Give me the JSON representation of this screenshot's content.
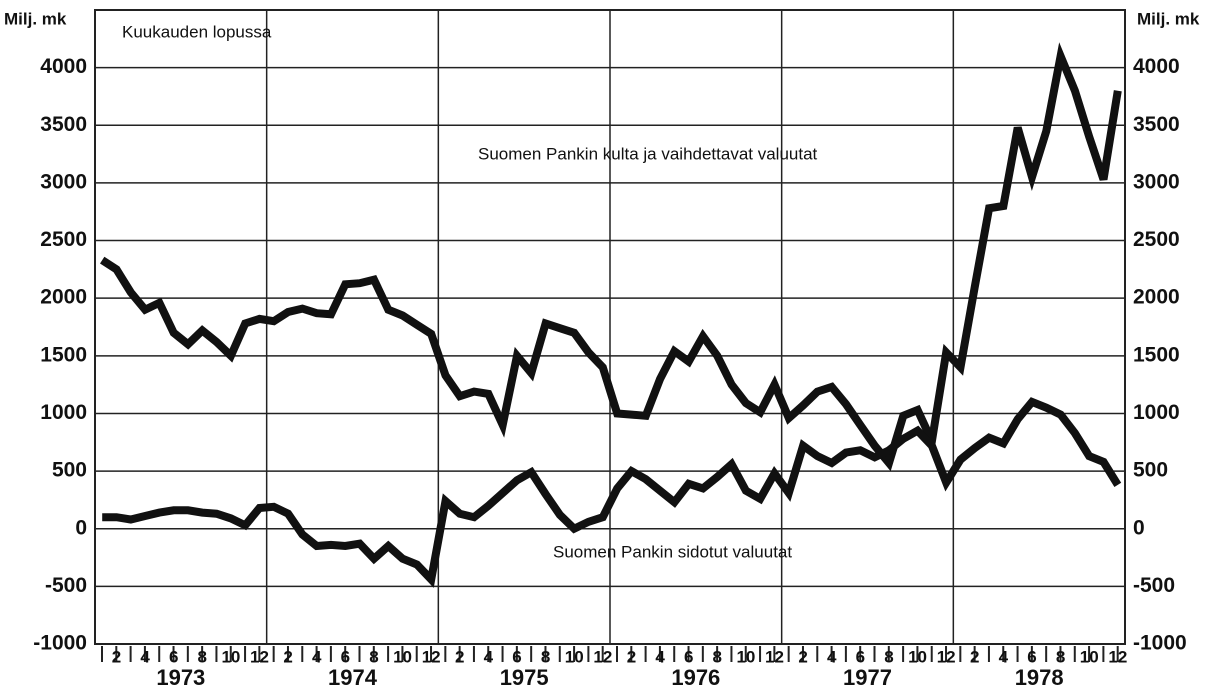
{
  "chart_data": {
    "type": "line",
    "y_axis_label": "Milj. mk",
    "y2_axis_label": "Milj. mk",
    "subtitle": "Kuukauden lopussa",
    "categories": [
      null,
      "2",
      null,
      "4",
      null,
      "6",
      null,
      "8",
      null,
      "10",
      null,
      "12",
      null,
      "2",
      null,
      "4",
      null,
      "6",
      null,
      "8",
      null,
      "10",
      null,
      "12",
      null,
      "2",
      null,
      "4",
      null,
      "6",
      null,
      "8",
      null,
      "10",
      null,
      "12",
      null,
      "2",
      null,
      "4",
      null,
      "6",
      null,
      "8",
      null,
      "10",
      null,
      "12",
      null,
      "2",
      null,
      "4",
      null,
      "6",
      null,
      "8",
      null,
      "10",
      null,
      "12",
      null,
      "2",
      null,
      "4",
      null,
      "6",
      null,
      "8",
      null,
      "10",
      null,
      "12"
    ],
    "years": [
      "1973",
      "1974",
      "1975",
      "1976",
      "1977",
      "1978"
    ],
    "series": [
      {
        "name": "Suomen Pankin kulta ja vaihdettavat valuutat",
        "color": "#111111",
        "values": [
          2330,
          2250,
          2050,
          1900,
          1960,
          1700,
          1600,
          1720,
          1620,
          1500,
          1780,
          1820,
          1800,
          1880,
          1910,
          1870,
          1860,
          2120,
          2130,
          2160,
          1900,
          1850,
          1770,
          1690,
          1330,
          1150,
          1190,
          1170,
          900,
          1500,
          1350,
          1780,
          1740,
          1700,
          1530,
          1400,
          1000,
          990,
          980,
          1300,
          1540,
          1450,
          1670,
          1500,
          1250,
          1090,
          1010,
          1250,
          960,
          1070,
          1190,
          1230,
          1080,
          900,
          720,
          570,
          980,
          1030,
          760,
          1530,
          1400,
          2100,
          2780,
          2800,
          3480,
          3050,
          3450,
          4100,
          3800,
          3400,
          3030,
          3800
        ]
      },
      {
        "name": "Suomen Pankin sidotut valuutat",
        "color": "#111111",
        "values": [
          100,
          100,
          80,
          110,
          140,
          160,
          160,
          140,
          130,
          90,
          30,
          180,
          190,
          130,
          -50,
          -150,
          -140,
          -150,
          -130,
          -260,
          -150,
          -260,
          -310,
          -440,
          240,
          130,
          100,
          200,
          310,
          420,
          490,
          300,
          120,
          0,
          60,
          100,
          350,
          500,
          430,
          330,
          230,
          390,
          350,
          450,
          560,
          330,
          260,
          480,
          310,
          720,
          630,
          570,
          660,
          680,
          620,
          680,
          780,
          850,
          720,
          400,
          600,
          700,
          790,
          740,
          950,
          1100,
          1050,
          990,
          830,
          630,
          580,
          380
        ]
      }
    ],
    "ylim": [
      -1000,
      4500
    ],
    "yticks": [
      -1000,
      -500,
      0,
      500,
      1000,
      1500,
      2000,
      2500,
      3000,
      3500,
      4000
    ],
    "y2lim": [
      -1000,
      4500
    ],
    "y2ticks": [
      -1000,
      -500,
      0,
      500,
      1000,
      1500,
      2000,
      2500,
      3000,
      3500,
      4000
    ],
    "grid": true
  }
}
